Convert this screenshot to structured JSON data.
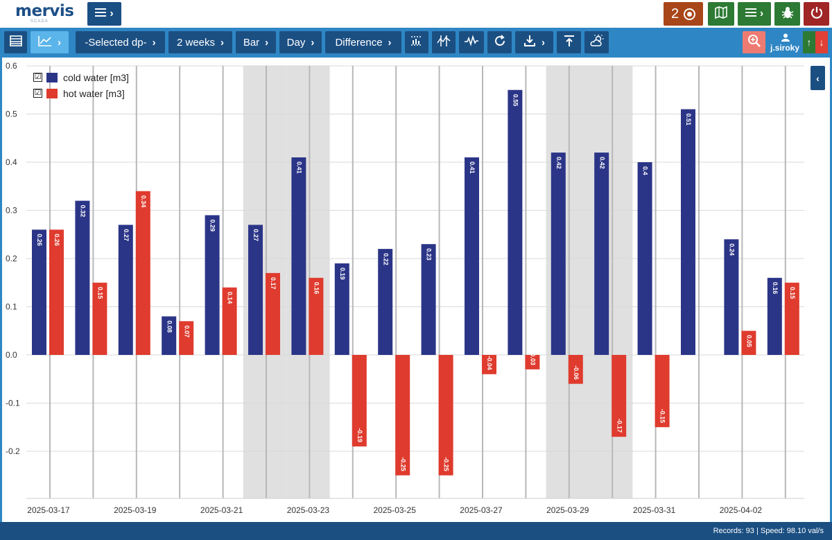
{
  "app": {
    "logo_text": "mervis",
    "logo_sub": "SCADA"
  },
  "topbar": {
    "counter_value": "2",
    "user_name": "j.siroky"
  },
  "toolbar": {
    "selected_dp": "-Selected dp-",
    "period": "2 weeks",
    "chart_type": "Bar",
    "aggregation": "Day",
    "mode": "Difference"
  },
  "legend": {
    "items": [
      {
        "label": "cold water [m3]",
        "color": "#2b3587",
        "checked": "☑"
      },
      {
        "label": "hot water [m3]",
        "color": "#df3b2e",
        "checked": "☑"
      }
    ]
  },
  "status": {
    "text": "Records: 93 | Speed: 98.10 val/s"
  },
  "colors": {
    "accent": "#2f86c4",
    "nav": "#1b4f82",
    "cold": "#2b3587",
    "hot": "#df3b2e",
    "weekend": "#e0e0e0"
  },
  "chart_data": {
    "type": "bar",
    "categories": [
      "2025-03-17",
      "2025-03-18",
      "2025-03-19",
      "2025-03-20",
      "2025-03-21",
      "2025-03-22",
      "2025-03-23",
      "2025-03-24",
      "2025-03-25",
      "2025-03-26",
      "2025-03-27",
      "2025-03-28",
      "2025-03-29",
      "2025-03-30",
      "2025-03-31",
      "2025-04-01",
      "2025-04-02",
      "2025-04-03"
    ],
    "tick_labels": [
      "2025-03-17",
      "",
      "2025-03-19",
      "",
      "2025-03-21",
      "",
      "2025-03-23",
      "",
      "2025-03-25",
      "",
      "2025-03-27",
      "",
      "2025-03-29",
      "",
      "2025-03-31",
      "",
      "2025-04-02",
      ""
    ],
    "series": [
      {
        "name": "cold water [m3]",
        "values": [
          0.26,
          0.32,
          0.27,
          0.08,
          0.29,
          0.27,
          0.41,
          0.19,
          0.22,
          0.23,
          0.41,
          0.55,
          0.42,
          0.42,
          0.4,
          0.51,
          0.24,
          0.16
        ]
      },
      {
        "name": "hot water [m3]",
        "values": [
          0.26,
          0.15,
          0.34,
          0.07,
          0.14,
          0.17,
          0.16,
          -0.19,
          -0.25,
          -0.25,
          -0.04,
          -0.03,
          -0.06,
          -0.17,
          -0.15,
          null,
          0.05,
          0.15
        ]
      }
    ],
    "value_labels": {
      "cold": [
        "0.26",
        "0.32",
        "0.27",
        "0.08",
        "0.29",
        "0.27",
        "0.41",
        "0.19",
        "0.22",
        "0.23",
        "0.41",
        "0.55",
        "0.42",
        "0.42",
        "0.4",
        "0.51",
        "0.24",
        "0.16"
      ],
      "hot": [
        "0.26",
        "0.15",
        "0.34",
        "0.07",
        "0.14",
        "0.17",
        "0.16",
        "-0.19",
        "-0.25",
        "-0.25",
        "-0.04",
        "-0.03",
        "-0.06",
        "-0.17",
        "-0.15",
        "",
        "0.05",
        "0.15"
      ]
    },
    "weekend_days": [
      "2025-03-22",
      "2025-03-23",
      "2025-03-29",
      "2025-03-30"
    ],
    "y_ticks": [
      "0.6",
      "0.5",
      "0.4",
      "0.3",
      "0.2",
      "0.1",
      "0.0",
      "-0.1",
      "-0.2"
    ],
    "y_tick_values": [
      0.6,
      0.5,
      0.4,
      0.3,
      0.2,
      0.1,
      0.0,
      -0.1,
      -0.2
    ],
    "ylim": [
      -0.29,
      0.6
    ],
    "grid": true,
    "legend_position": "top-left"
  }
}
